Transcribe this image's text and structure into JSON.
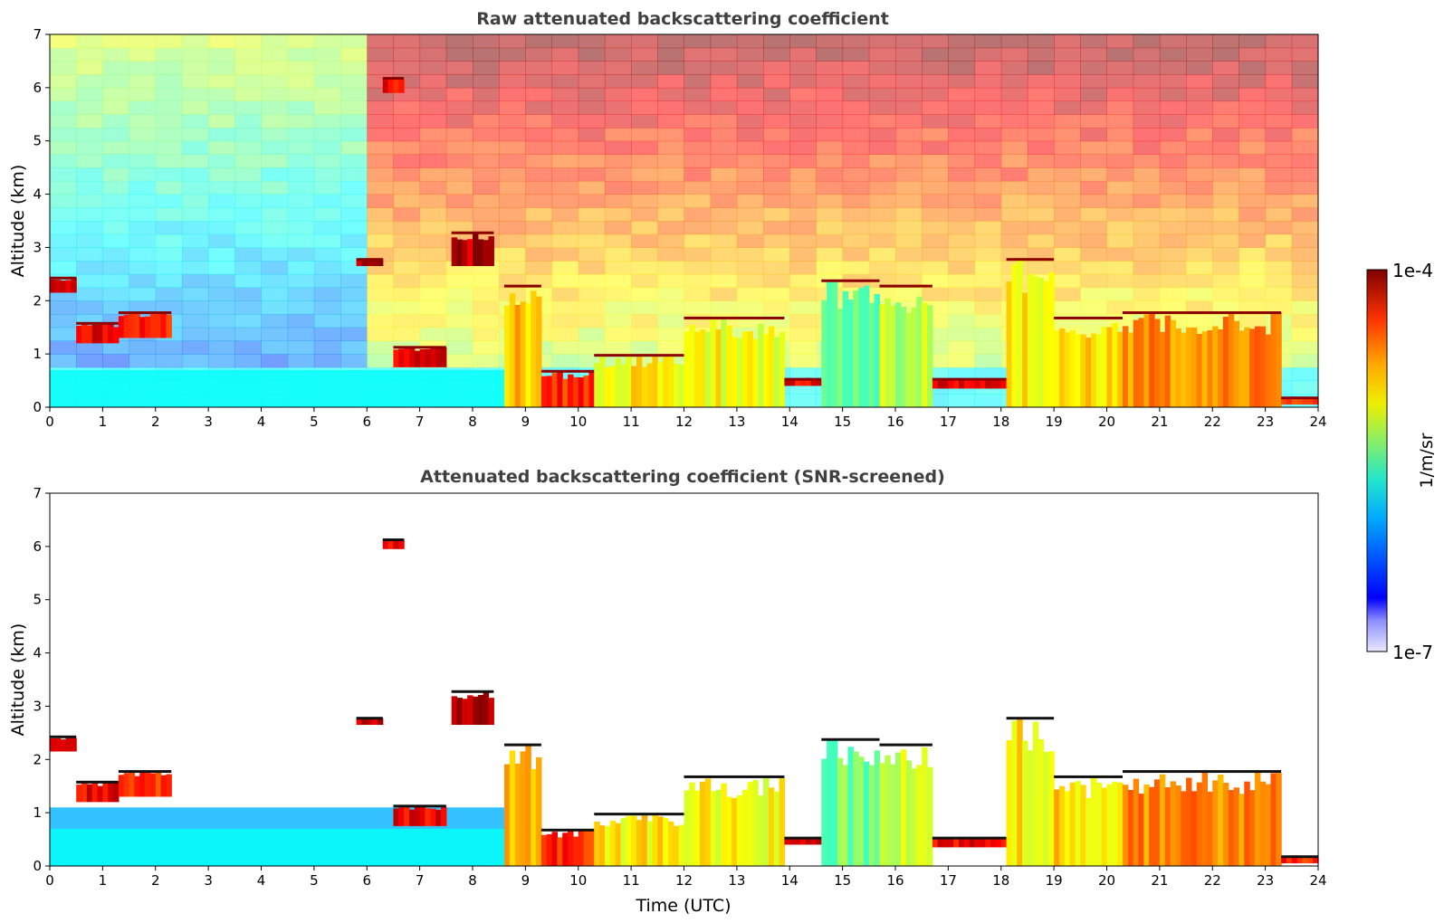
{
  "chart_data": [
    {
      "type": "heatmap",
      "title": "Raw attenuated backscattering coefficient",
      "xlabel": "",
      "ylabel": "Altitude (km)",
      "xlim": [
        0,
        24
      ],
      "ylim": [
        0,
        7
      ],
      "xticks": [
        "0",
        "1",
        "2",
        "3",
        "4",
        "5",
        "6",
        "7",
        "8",
        "9",
        "10",
        "11",
        "12",
        "13",
        "14",
        "15",
        "16",
        "17",
        "18",
        "19",
        "20",
        "21",
        "22",
        "23",
        "24"
      ],
      "yticks": [
        "0",
        "1",
        "2",
        "3",
        "4",
        "5",
        "6",
        "7"
      ],
      "screened": false,
      "layers": [
        {
          "x0": 0.0,
          "x1": 0.5,
          "y0": 2.15,
          "y1": 2.45,
          "level": 0.95
        },
        {
          "x0": 0.5,
          "x1": 1.3,
          "y0": 1.2,
          "y1": 1.6,
          "level": 0.95
        },
        {
          "x0": 1.3,
          "x1": 2.3,
          "y0": 1.3,
          "y1": 1.8,
          "level": 0.9
        },
        {
          "x0": 5.8,
          "x1": 6.3,
          "y0": 2.65,
          "y1": 2.8,
          "level": 1.0
        },
        {
          "x0": 6.3,
          "x1": 6.7,
          "y0": 5.9,
          "y1": 6.2,
          "level": 0.95
        },
        {
          "x0": 6.5,
          "x1": 7.5,
          "y0": 0.75,
          "y1": 1.15,
          "level": 0.95
        },
        {
          "x0": 7.6,
          "x1": 8.4,
          "y0": 2.65,
          "y1": 3.3,
          "level": 1.0
        },
        {
          "x0": 8.6,
          "x1": 9.3,
          "y0": 0.0,
          "y1": 2.3,
          "level": 0.75
        },
        {
          "x0": 9.3,
          "x1": 10.3,
          "y0": 0.0,
          "y1": 0.7,
          "level": 0.9
        },
        {
          "x0": 10.3,
          "x1": 12.0,
          "y0": 0.0,
          "y1": 1.0,
          "level": 0.7
        },
        {
          "x0": 12.0,
          "x1": 13.9,
          "y0": 0.0,
          "y1": 1.7,
          "level": 0.68
        },
        {
          "x0": 13.9,
          "x1": 14.6,
          "y0": 0.4,
          "y1": 0.55,
          "level": 0.95
        },
        {
          "x0": 14.6,
          "x1": 15.7,
          "y0": 0.0,
          "y1": 2.4,
          "level": 0.55
        },
        {
          "x0": 15.7,
          "x1": 16.7,
          "y0": 0.0,
          "y1": 2.3,
          "level": 0.62
        },
        {
          "x0": 16.7,
          "x1": 18.1,
          "y0": 0.35,
          "y1": 0.55,
          "level": 0.95
        },
        {
          "x0": 18.1,
          "x1": 19.0,
          "y0": 0.0,
          "y1": 2.8,
          "level": 0.7
        },
        {
          "x0": 19.0,
          "x1": 20.3,
          "y0": 0.0,
          "y1": 1.7,
          "level": 0.72
        },
        {
          "x0": 20.3,
          "x1": 23.3,
          "y0": 0.0,
          "y1": 1.8,
          "level": 0.8
        },
        {
          "x0": 23.3,
          "x1": 24.0,
          "y0": 0.05,
          "y1": 0.2,
          "level": 0.9
        }
      ]
    },
    {
      "type": "heatmap",
      "title": "Attenuated backscattering coefficient (SNR-screened)",
      "xlabel": "Time (UTC)",
      "ylabel": "Altitude (km)",
      "xlim": [
        0,
        24
      ],
      "ylim": [
        0,
        7
      ],
      "xticks": [
        "0",
        "1",
        "2",
        "3",
        "4",
        "5",
        "6",
        "7",
        "8",
        "9",
        "10",
        "11",
        "12",
        "13",
        "14",
        "15",
        "16",
        "17",
        "18",
        "19",
        "20",
        "21",
        "22",
        "23",
        "24"
      ],
      "yticks": [
        "0",
        "1",
        "2",
        "3",
        "4",
        "5",
        "6",
        "7"
      ],
      "screened": true,
      "layers": [
        {
          "x0": 0.0,
          "x1": 0.5,
          "y0": 2.15,
          "y1": 2.45,
          "level": 0.95
        },
        {
          "x0": 0.5,
          "x1": 1.3,
          "y0": 1.2,
          "y1": 1.6,
          "level": 0.95
        },
        {
          "x0": 1.3,
          "x1": 2.3,
          "y0": 1.3,
          "y1": 1.8,
          "level": 0.9
        },
        {
          "x0": 5.8,
          "x1": 6.3,
          "y0": 2.65,
          "y1": 2.8,
          "level": 1.0
        },
        {
          "x0": 6.3,
          "x1": 6.7,
          "y0": 5.95,
          "y1": 6.15,
          "level": 0.95
        },
        {
          "x0": 6.5,
          "x1": 7.5,
          "y0": 0.75,
          "y1": 1.15,
          "level": 0.95
        },
        {
          "x0": 7.6,
          "x1": 8.4,
          "y0": 2.65,
          "y1": 3.3,
          "level": 1.0
        },
        {
          "x0": 8.6,
          "x1": 9.3,
          "y0": 0.0,
          "y1": 2.3,
          "level": 0.75
        },
        {
          "x0": 9.3,
          "x1": 10.3,
          "y0": 0.0,
          "y1": 0.7,
          "level": 0.9
        },
        {
          "x0": 10.3,
          "x1": 12.0,
          "y0": 0.0,
          "y1": 1.0,
          "level": 0.7
        },
        {
          "x0": 12.0,
          "x1": 13.9,
          "y0": 0.0,
          "y1": 1.7,
          "level": 0.68
        },
        {
          "x0": 13.9,
          "x1": 14.6,
          "y0": 0.4,
          "y1": 0.55,
          "level": 0.95
        },
        {
          "x0": 14.6,
          "x1": 15.7,
          "y0": 0.0,
          "y1": 2.4,
          "level": 0.55
        },
        {
          "x0": 15.7,
          "x1": 16.7,
          "y0": 0.0,
          "y1": 2.3,
          "level": 0.62
        },
        {
          "x0": 16.7,
          "x1": 18.1,
          "y0": 0.35,
          "y1": 0.55,
          "level": 0.95
        },
        {
          "x0": 18.1,
          "x1": 19.0,
          "y0": 0.0,
          "y1": 2.8,
          "level": 0.7
        },
        {
          "x0": 19.0,
          "x1": 20.3,
          "y0": 0.0,
          "y1": 1.7,
          "level": 0.72
        },
        {
          "x0": 20.3,
          "x1": 23.3,
          "y0": 0.0,
          "y1": 1.8,
          "level": 0.8
        },
        {
          "x0": 23.3,
          "x1": 24.0,
          "y0": 0.05,
          "y1": 0.2,
          "level": 0.9
        }
      ]
    }
  ],
  "colorbar": {
    "label": "1/m/sr",
    "max_label": "1e-4",
    "min_label": "1e-7",
    "colormap": "jet"
  }
}
